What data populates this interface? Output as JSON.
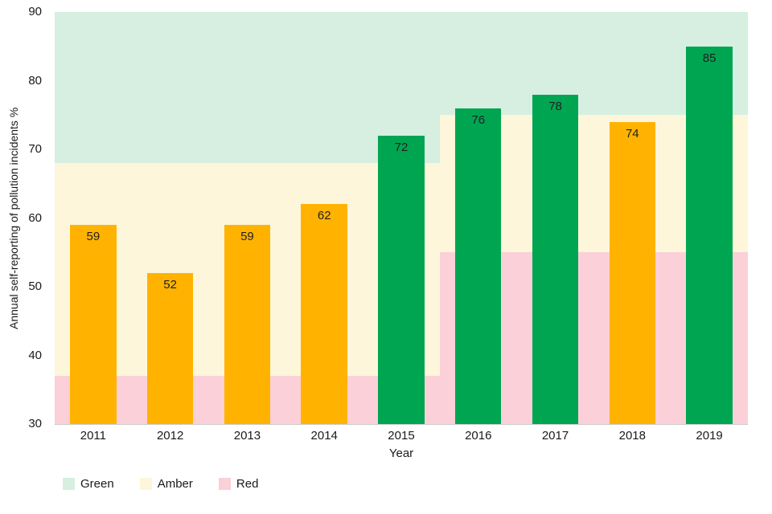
{
  "chart_data": {
    "type": "bar",
    "title": "",
    "xlabel": "Year",
    "ylabel": "Annual self-reporting of pollution incidents %",
    "ylim": [
      30,
      90
    ],
    "yticks": [
      30,
      40,
      50,
      60,
      70,
      80,
      90
    ],
    "grid": false,
    "legend_position": "bottom-left",
    "categories": [
      "2011",
      "2012",
      "2013",
      "2014",
      "2015",
      "2016",
      "2017",
      "2018",
      "2019"
    ],
    "values": [
      59,
      52,
      59,
      62,
      72,
      76,
      78,
      74,
      85
    ],
    "bar_status": [
      "amber",
      "amber",
      "amber",
      "amber",
      "green",
      "green",
      "green",
      "amber",
      "green"
    ],
    "zones": [
      {
        "category_start": "2011",
        "category_end": "2015",
        "bands": [
          {
            "name": "red",
            "low": 30,
            "high": 37
          },
          {
            "name": "amber",
            "low": 37,
            "high": 68
          },
          {
            "name": "green",
            "low": 68,
            "high": 90
          }
        ]
      },
      {
        "category_start": "2016",
        "category_end": "2019",
        "bands": [
          {
            "name": "red",
            "low": 30,
            "high": 55
          },
          {
            "name": "amber",
            "low": 55,
            "high": 75
          },
          {
            "name": "green",
            "low": 75,
            "high": 90
          }
        ]
      }
    ],
    "legend": [
      {
        "label": "Green",
        "color_key": "zone_green"
      },
      {
        "label": "Amber",
        "color_key": "zone_amber"
      },
      {
        "label": "Red",
        "color_key": "zone_red"
      }
    ]
  },
  "colors": {
    "bar_green": "#00a551",
    "bar_amber": "#ffb300",
    "zone_green": "#d6efe0",
    "zone_amber": "#fdf6da",
    "zone_red": "#fbd0d8",
    "axis_text": "#1a1a1a",
    "value_label": "#1f1f1f",
    "baseline": "#cccccc"
  }
}
